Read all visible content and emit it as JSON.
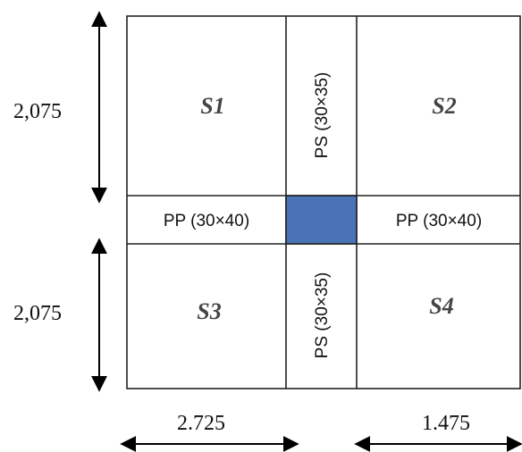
{
  "dimensions": {
    "top_height": "2,075",
    "bottom_height": "2,075",
    "left_width": "2.725",
    "right_width": "1.475"
  },
  "slabs": {
    "s1": "S1",
    "s2": "S2",
    "s3": "S3",
    "s4": "S4"
  },
  "beams": {
    "ps_top": "PS (30×35)",
    "ps_bottom": "PS (30×35)",
    "pp_left": "PP (30×40)",
    "pp_right": "PP (30×40)"
  },
  "colors": {
    "column": "#4a73b5",
    "lines": "#222222"
  }
}
